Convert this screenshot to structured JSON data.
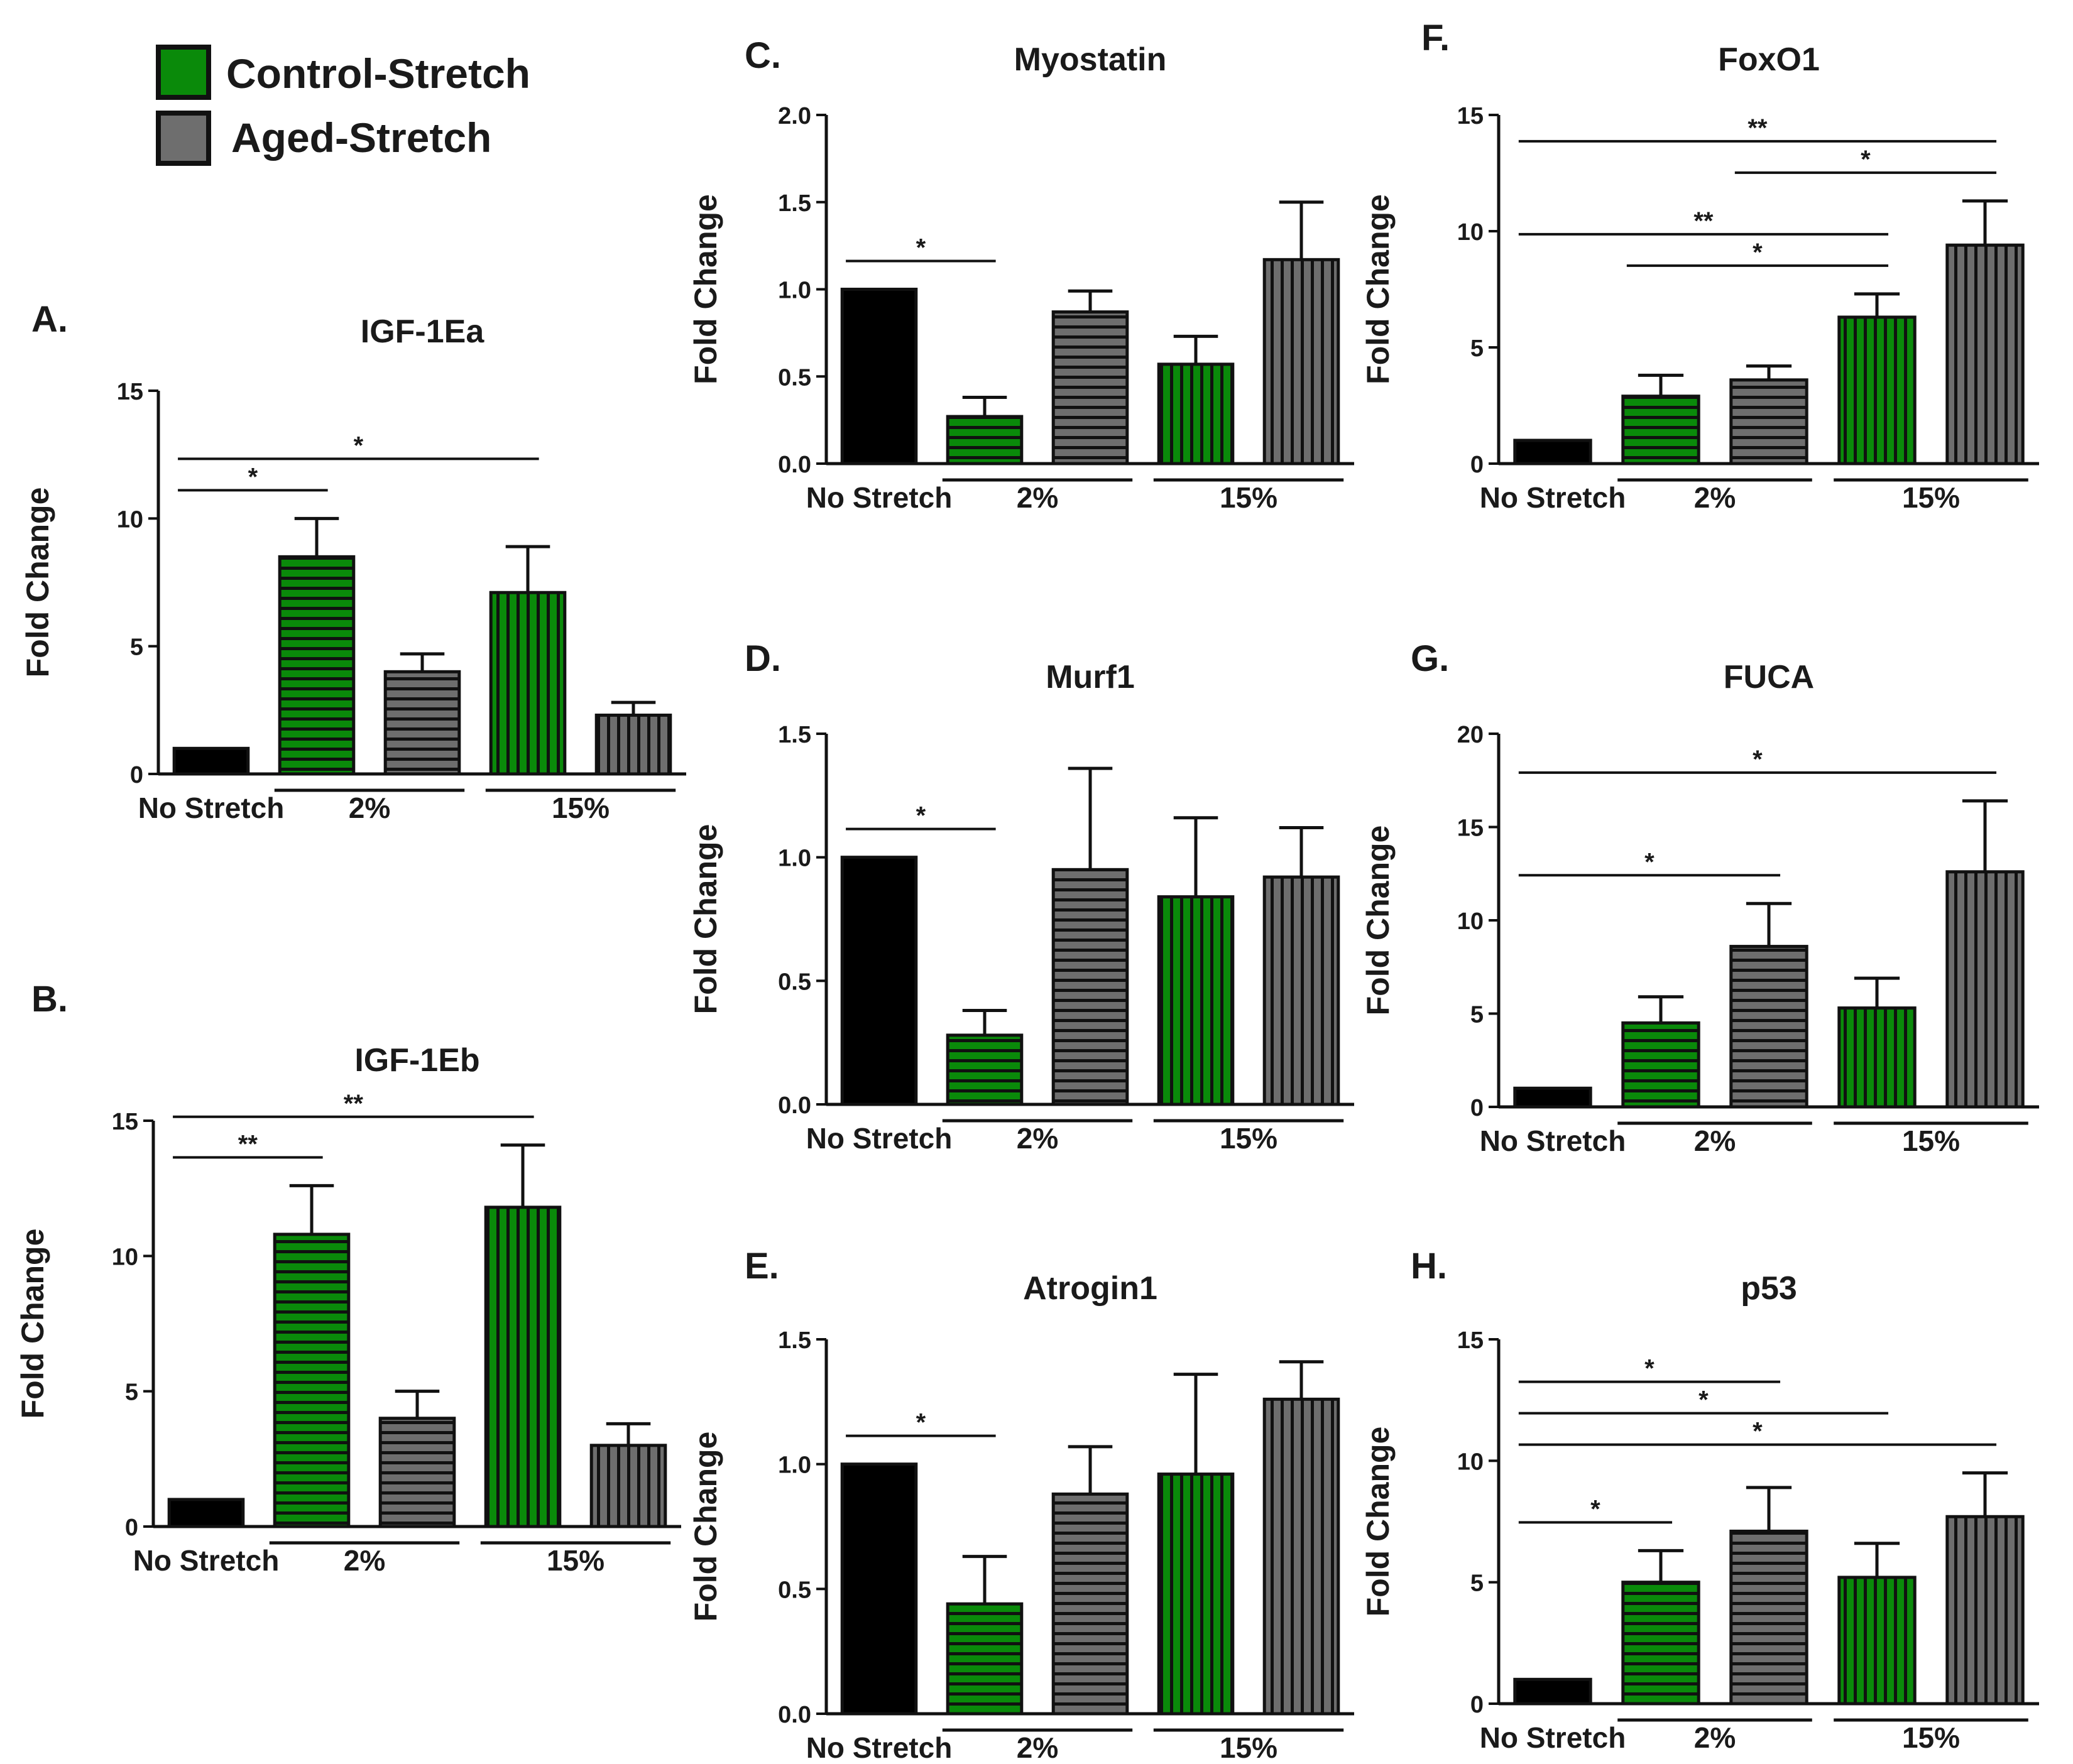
{
  "legend": [
    {
      "label": "Control-Stretch",
      "color": "#0a8a0a"
    },
    {
      "label": "Aged-Stretch",
      "color": "#6e6e6e"
    }
  ],
  "colors": {
    "no_stretch": "#000000",
    "control": "#0a8a0a",
    "aged": "#6e6e6e",
    "stripe": "#111111"
  },
  "chart_data": [
    {
      "letter": "A.",
      "title": "IGF-1Ea",
      "type": "bar",
      "ylabel": "Fold Change",
      "ylim": [
        0,
        15
      ],
      "yticks": [
        "0",
        "5",
        "10",
        "15"
      ],
      "group_labels": [
        "No Stretch",
        "2%",
        "15%"
      ],
      "categories": [
        "No Stretch",
        "2% Control-Stretch",
        "2% Aged-Stretch",
        "15% Control-Stretch",
        "15% Aged-Stretch"
      ],
      "values": [
        1.0,
        8.5,
        4.0,
        7.1,
        2.3
      ],
      "errors": [
        0,
        1.5,
        0.7,
        1.8,
        0.5
      ],
      "significance": [
        {
          "from": 0,
          "to": 1,
          "label": "*"
        },
        {
          "from": 0,
          "to": 3,
          "label": "*"
        }
      ]
    },
    {
      "letter": "B.",
      "title": "IGF-1Eb",
      "type": "bar",
      "ylabel": "Fold Change",
      "ylim": [
        0,
        15
      ],
      "yticks": [
        "0",
        "5",
        "10",
        "15"
      ],
      "group_labels": [
        "No Stretch",
        "2%",
        "15%"
      ],
      "categories": [
        "No Stretch",
        "2% Control-Stretch",
        "2% Aged-Stretch",
        "15% Control-Stretch",
        "15% Aged-Stretch"
      ],
      "values": [
        1.0,
        10.8,
        4.0,
        11.8,
        3.0
      ],
      "errors": [
        0,
        1.8,
        1.0,
        2.3,
        0.8
      ],
      "significance": [
        {
          "from": 0,
          "to": 1,
          "label": "**"
        },
        {
          "from": 0,
          "to": 3,
          "label": "**"
        }
      ]
    },
    {
      "letter": "C.",
      "title": "Myostatin",
      "type": "bar",
      "ylabel": "Fold Change",
      "ylim": [
        0,
        2
      ],
      "yticks": [
        "0.0",
        "0.5",
        "1.0",
        "1.5",
        "2.0"
      ],
      "group_labels": [
        "No Stretch",
        "2%",
        "15%"
      ],
      "categories": [
        "No Stretch",
        "2% Control-Stretch",
        "2% Aged-Stretch",
        "15% Control-Stretch",
        "15% Aged-Stretch"
      ],
      "values": [
        1.0,
        0.27,
        0.87,
        0.57,
        1.17
      ],
      "errors": [
        0,
        0.11,
        0.12,
        0.16,
        0.33
      ],
      "significance": [
        {
          "from": 0,
          "to": 1,
          "label": "*"
        }
      ]
    },
    {
      "letter": "D.",
      "title": "Murf1",
      "type": "bar",
      "ylabel": "Fold Change",
      "ylim": [
        0,
        1.5
      ],
      "yticks": [
        "0.0",
        "0.5",
        "1.0",
        "1.5"
      ],
      "group_labels": [
        "No Stretch",
        "2%",
        "15%"
      ],
      "categories": [
        "No Stretch",
        "2% Control-Stretch",
        "2% Aged-Stretch",
        "15% Control-Stretch",
        "15% Aged-Stretch"
      ],
      "values": [
        1.0,
        0.28,
        0.95,
        0.84,
        0.92
      ],
      "errors": [
        0,
        0.1,
        0.41,
        0.32,
        0.2
      ],
      "significance": [
        {
          "from": 0,
          "to": 1,
          "label": "*"
        }
      ]
    },
    {
      "letter": "E.",
      "title": "Atrogin1",
      "type": "bar",
      "ylabel": "Fold Change",
      "ylim": [
        0,
        1.5
      ],
      "yticks": [
        "0.0",
        "0.5",
        "1.0",
        "1.5"
      ],
      "group_labels": [
        "No Stretch",
        "2%",
        "15%"
      ],
      "categories": [
        "No Stretch",
        "2% Control-Stretch",
        "2% Aged-Stretch",
        "15% Control-Stretch",
        "15% Aged-Stretch"
      ],
      "values": [
        1.0,
        0.44,
        0.88,
        0.96,
        1.26
      ],
      "errors": [
        0,
        0.19,
        0.19,
        0.4,
        0.15
      ],
      "significance": [
        {
          "from": 0,
          "to": 1,
          "label": "*"
        }
      ]
    },
    {
      "letter": "F.",
      "title": "FoxO1",
      "type": "bar",
      "ylabel": "Fold Change",
      "ylim": [
        0,
        15
      ],
      "yticks": [
        "0",
        "5",
        "10",
        "15"
      ],
      "group_labels": [
        "No Stretch",
        "2%",
        "15%"
      ],
      "categories": [
        "No Stretch",
        "2% Control-Stretch",
        "2% Aged-Stretch",
        "15% Control-Stretch",
        "15% Aged-Stretch"
      ],
      "values": [
        1.0,
        2.9,
        3.6,
        6.3,
        9.4
      ],
      "errors": [
        0,
        0.9,
        0.6,
        1.0,
        1.9
      ],
      "significance": [
        {
          "from": 2,
          "to": 4,
          "label": "*"
        },
        {
          "from": 0,
          "to": 4,
          "label": "**"
        },
        {
          "from": 1,
          "to": 3,
          "label": "*"
        },
        {
          "from": 0,
          "to": 3,
          "label": "**"
        }
      ]
    },
    {
      "letter": "G.",
      "title": "FUCA",
      "type": "bar",
      "ylabel": "Fold Change",
      "ylim": [
        0,
        20
      ],
      "yticks": [
        "0",
        "5",
        "10",
        "15",
        "20"
      ],
      "group_labels": [
        "No Stretch",
        "2%",
        "15%"
      ],
      "categories": [
        "No Stretch",
        "2% Control-Stretch",
        "2% Aged-Stretch",
        "15% Control-Stretch",
        "15% Aged-Stretch"
      ],
      "values": [
        1.0,
        4.5,
        8.6,
        5.3,
        12.6
      ],
      "errors": [
        0,
        1.4,
        2.3,
        1.6,
        3.8
      ],
      "significance": [
        {
          "from": 0,
          "to": 4,
          "label": "*"
        },
        {
          "from": 0,
          "to": 2,
          "label": "*"
        }
      ]
    },
    {
      "letter": "H.",
      "title": "p53",
      "type": "bar",
      "ylabel": "Fold Change",
      "ylim": [
        0,
        15
      ],
      "yticks": [
        "0",
        "5",
        "10",
        "15"
      ],
      "group_labels": [
        "No Stretch",
        "2%",
        "15%"
      ],
      "categories": [
        "No Stretch",
        "2% Control-Stretch",
        "2% Aged-Stretch",
        "15% Control-Stretch",
        "15% Aged-Stretch"
      ],
      "values": [
        1.0,
        5.0,
        7.1,
        5.2,
        7.7
      ],
      "errors": [
        0,
        1.3,
        1.8,
        1.4,
        1.8
      ],
      "significance": [
        {
          "from": 0,
          "to": 4,
          "label": "*"
        },
        {
          "from": 0,
          "to": 3,
          "label": "*"
        },
        {
          "from": 0,
          "to": 2,
          "label": "*"
        },
        {
          "from": 0,
          "to": 1,
          "label": "*"
        }
      ]
    }
  ]
}
